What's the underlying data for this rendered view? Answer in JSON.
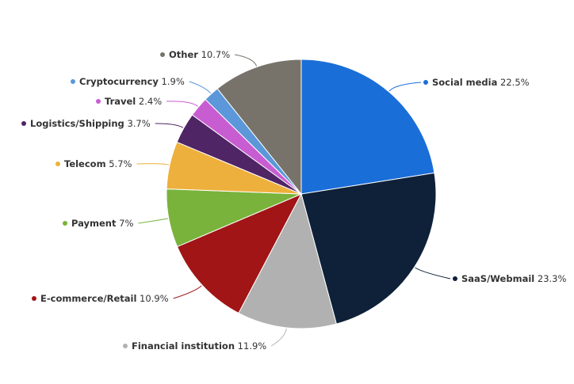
{
  "chart_data": {
    "type": "pie",
    "title": "",
    "legend": "none",
    "slices": [
      {
        "label": "Social media",
        "value": 22.5,
        "value_text": "22.5%",
        "color": "#1a6ed8"
      },
      {
        "label": "SaaS/Webmail",
        "value": 23.3,
        "value_text": "23.3%",
        "color": "#0e2138"
      },
      {
        "label": "Financial institution",
        "value": 11.9,
        "value_text": "11.9%",
        "color": "#b1b1b1"
      },
      {
        "label": "E-commerce/Retail",
        "value": 10.9,
        "value_text": "10.9%",
        "color": "#a11516"
      },
      {
        "label": "Payment",
        "value": 7,
        "value_text": "7%",
        "color": "#79b33b"
      },
      {
        "label": "Telecom",
        "value": 5.7,
        "value_text": "5.7%",
        "color": "#eeb03c"
      },
      {
        "label": "Logistics/Shipping",
        "value": 3.7,
        "value_text": "3.7%",
        "color": "#4f2565"
      },
      {
        "label": "Travel",
        "value": 2.4,
        "value_text": "2.4%",
        "color": "#c85dd2"
      },
      {
        "label": "Cryptocurrency",
        "value": 1.9,
        "value_text": "1.9%",
        "color": "#5b97d9"
      },
      {
        "label": "Other",
        "value": 10.7,
        "value_text": "10.7%",
        "color": "#77736b"
      }
    ]
  }
}
